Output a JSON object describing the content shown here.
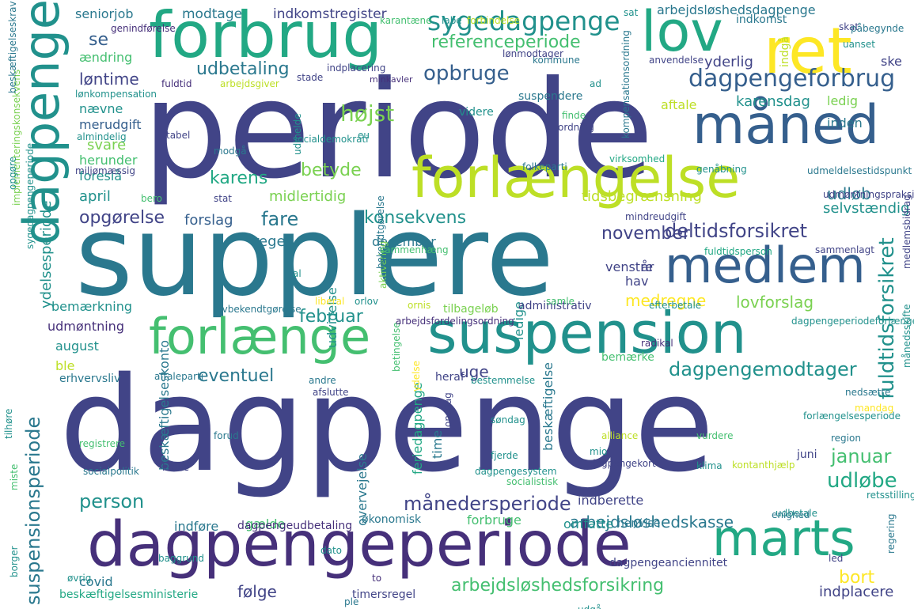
{
  "palette": {
    "dark_purple": "#46307a",
    "indigo": "#414487",
    "blue": "#355f8d",
    "teal_blue": "#2a788e",
    "teal": "#21918c",
    "green_teal": "#22a884",
    "green": "#44bf70",
    "light_green": "#7ad151",
    "yellow_green": "#bddf26",
    "yellow": "#fde725"
  },
  "words": [
    "periode",
    "supplere",
    "dagpenge",
    "dagpengeret",
    "forbrug",
    "lov",
    "ret",
    "måned",
    "forlængelse",
    "suspension",
    "medlem",
    "marts",
    "forlænge",
    "dagpengeperiode",
    "sygedagpenge",
    "referenceperiode",
    "udbetaling",
    "opbruge",
    "løntime",
    "dagpengeforbrug",
    "højst",
    "karens",
    "betyde",
    "fare",
    "konsekvens",
    "deltidsforsikret",
    "november",
    "opgørelse",
    "regel",
    "forslag",
    "april",
    "udløb",
    "selvstændig",
    "fuldtidsforsikret",
    "februar",
    "medregne",
    "lovforslag",
    "eventuel",
    "uge",
    "dagpengemodtager",
    "januar",
    "udløbe",
    "person",
    "månedersperiode",
    "arbejdsløshedskasse",
    "arbejdsløshedsforsikring",
    "bort",
    "følge",
    "indplacere",
    "suspensionsperiode",
    "beskæftigelseskonto",
    "ydelsesperiode",
    "modtage",
    "indkomstregister",
    "seniorjob",
    "se",
    "ændring",
    "nævne",
    "merudgift",
    "svare",
    "herunder",
    "foreslå",
    "midlertidig",
    "tidsbegrænsning",
    "aftale",
    "karensdag",
    "ledig",
    "inden",
    "yderlig",
    "ske",
    "arbejdsløshedsdagpenge",
    "indkomst",
    "indgå",
    "december",
    "venstre",
    "år",
    "hav",
    "udvidelse",
    "ledige",
    "tilbageløb",
    "administrativ",
    "bemærkning",
    "udmøntning",
    "august",
    "ble",
    "erhvervsliv",
    "bemærke",
    "overvejelse",
    "feriedagpenge",
    "time",
    "beskæftigelse",
    "gælde",
    "indføre",
    "dagpengeudbetaling",
    "økonomisk",
    "omfatte",
    "henvise",
    "udbetale",
    "forbruge",
    "covid",
    "beskæftigelsesministerie",
    "timersregel",
    "dagpengeanciennitet",
    "indberette",
    "juni",
    "vurdere",
    "region",
    "alliance",
    "heraf",
    "suspendere",
    "videre",
    "minkavler",
    "fuldtidsperson",
    "aktivering",
    "sygedagpengeperiode",
    "liberal",
    "orlov",
    "radikal",
    "nedsætte",
    "mandag",
    "klima",
    "socialistisk",
    "kontanthjælp",
    "retsstilling",
    "enighed",
    "mindreudgift",
    "udmeldelsestidspunkt",
    "genåbning",
    "folkeparti",
    "virksomhed",
    "samle",
    "efterbetale",
    "sammenlagt",
    "udmøntningspraksis",
    "sat",
    "skat",
    "uanset",
    "påbegynde",
    "anvendelse",
    "kommune",
    "lønmodtager",
    "forbindelse",
    "labe",
    "karantæne",
    "genindførelse",
    "tabel",
    "eu",
    "ordning",
    "finde",
    "mio",
    "dagpengekort",
    "dagpengesystem",
    "fjerde",
    "andre",
    "afslutte",
    "bestemmelse",
    "ydelse",
    "betingelse",
    "al",
    "dato",
    "to",
    "ple",
    "regering",
    "borger",
    "krone",
    "registrere",
    "forud",
    "øvrig",
    "socialpolitik",
    "miste",
    "implementeringskonsekvens",
    "beskæftigelseskrav",
    "lønkompensation",
    "almindelig",
    "miljømæssig",
    "opgøre",
    "bero",
    "stat",
    "modgå",
    "socialdemokrati",
    "udmelde",
    "indplacering",
    "stade",
    "fuldtid",
    "arbejdsgiver",
    "ad",
    "medlemsbidrag",
    "månedsskifte",
    "kompensationsordning",
    "bekendtgørelse",
    "sammenhæng",
    "lovbekendtgørelse",
    "aftaleparti",
    "tilhøre",
    "dagpengeperiodeforlængelse",
    "forlængelsesperiode",
    "søndag",
    "onsdag",
    "udgå",
    "baggrund",
    "arbejdsfordelingsordning",
    "ornis",
    "led",
    "tabt",
    "i"
  ]
}
